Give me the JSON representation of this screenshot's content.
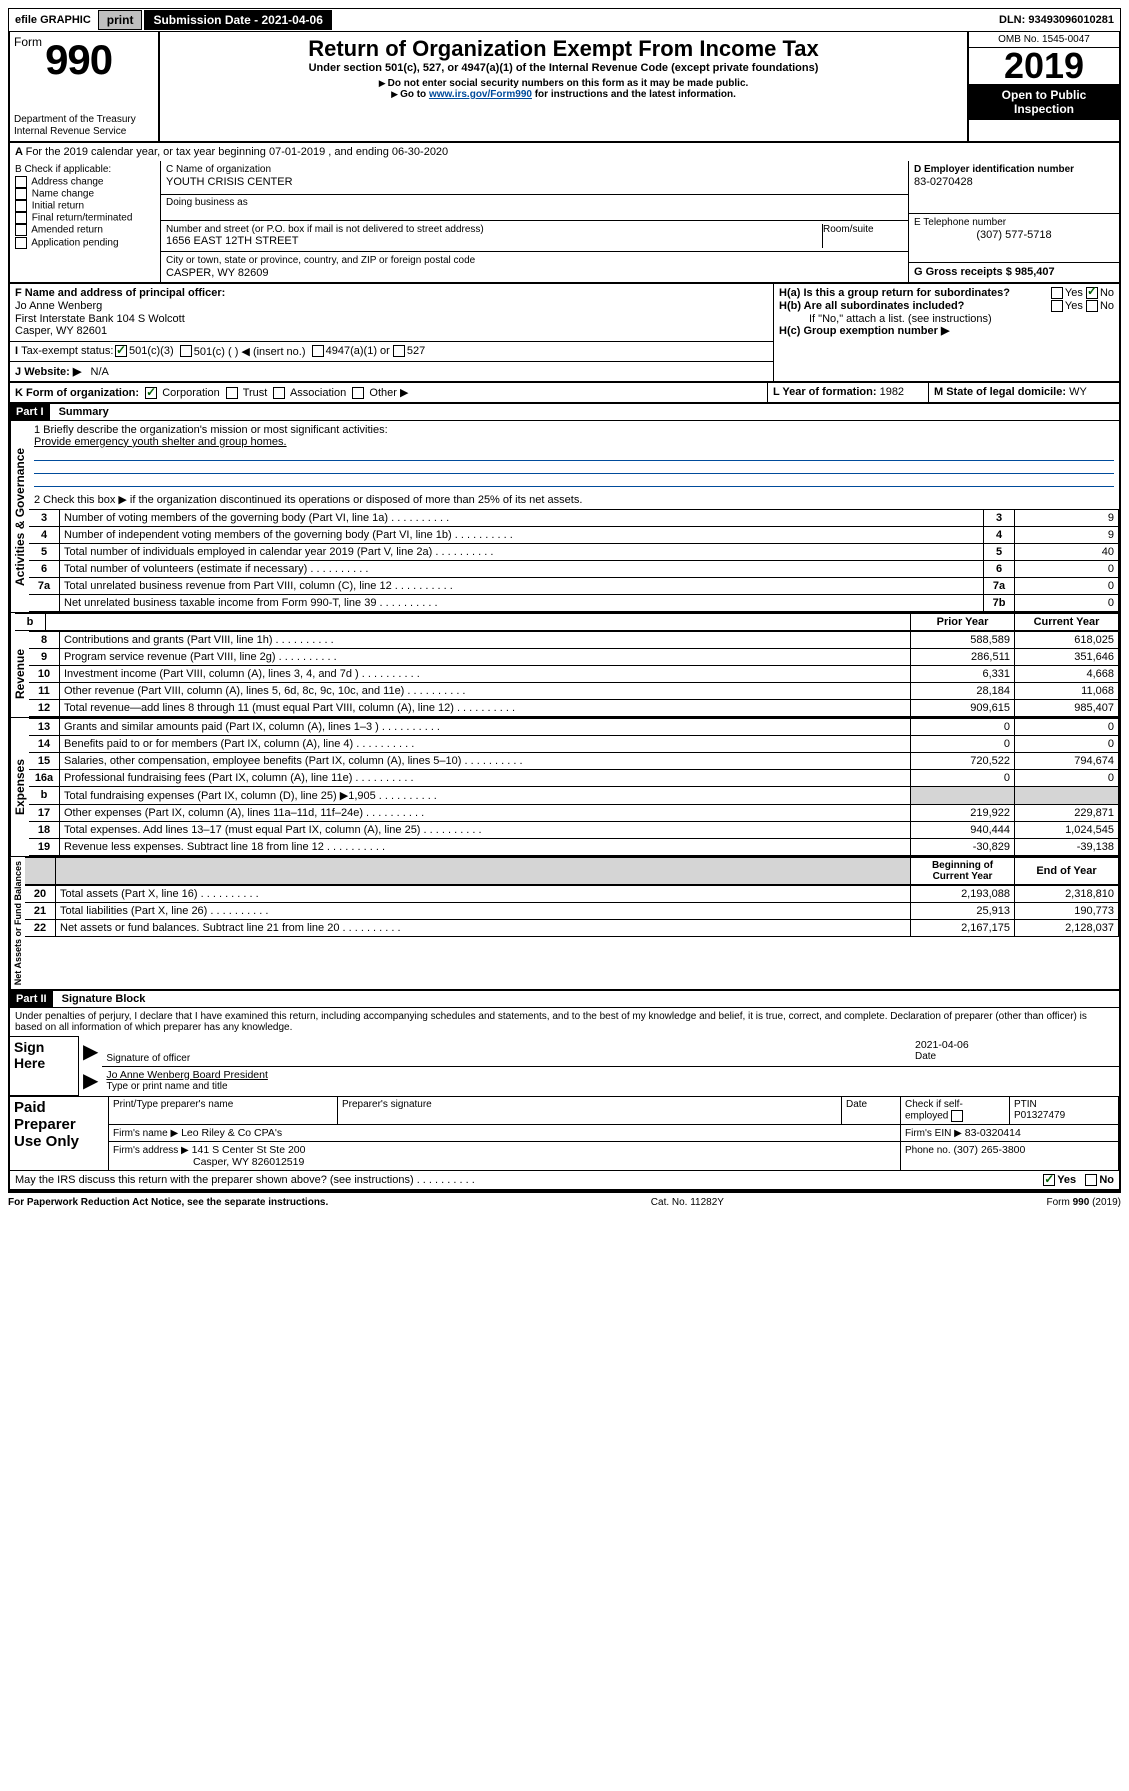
{
  "topbar": {
    "efile_label": "efile GRAPHIC",
    "print_btn": "print",
    "sub_date_label": "Submission Date - 2021-04-06",
    "dln_label": "DLN: 93493096010281"
  },
  "header": {
    "form_word": "Form",
    "form_num": "990",
    "dept1": "Department of the Treasury",
    "dept2": "Internal Revenue Service",
    "title": "Return of Organization Exempt From Income Tax",
    "subtitle": "Under section 501(c), 527, or 4947(a)(1) of the Internal Revenue Code (except private foundations)",
    "note1": "Do not enter social security numbers on this form as it may be made public.",
    "note2_a": "Go to ",
    "note2_link": "www.irs.gov/Form990",
    "note2_b": " for instructions and the latest information.",
    "omb": "OMB No. 1545-0047",
    "year": "2019",
    "inspect": "Open to Public Inspection"
  },
  "line_a": "For the 2019 calendar year, or tax year beginning 07-01-2019   , and ending 06-30-2020",
  "box_b": {
    "title": "B Check if applicable:",
    "opts": [
      "Address change",
      "Name change",
      "Initial return",
      "Final return/terminated",
      "Amended return",
      "Application pending"
    ]
  },
  "box_c": {
    "label": "C Name of organization",
    "name": "YOUTH CRISIS CENTER",
    "dba_label": "Doing business as",
    "addr_label": "Number and street (or P.O. box if mail is not delivered to street address)",
    "room_label": "Room/suite",
    "addr": "1656 EAST 12TH STREET",
    "city_label": "City or town, state or province, country, and ZIP or foreign postal code",
    "city": "CASPER, WY  82609"
  },
  "box_d": {
    "label": "D Employer identification number",
    "val": "83-0270428"
  },
  "box_e": {
    "label": "E Telephone number",
    "val": "(307) 577-5718"
  },
  "box_g": {
    "label": "G Gross receipts $",
    "val": "985,407"
  },
  "box_f": {
    "label": "F  Name and address of principal officer:",
    "l1": "Jo Anne Wenberg",
    "l2": "First Interstate Bank 104 S Wolcott",
    "l3": "Casper, WY  82601"
  },
  "box_h": {
    "ha": "H(a)  Is this a group return for subordinates?",
    "hb": "H(b)  Are all subordinates included?",
    "hnote": "If \"No,\" attach a list. (see instructions)",
    "hc": "H(c)  Group exemption number ▶",
    "yes": "Yes",
    "no": "No"
  },
  "box_i": {
    "label": "Tax-exempt status:",
    "o1": "501(c)(3)",
    "o2": "501(c) (  ) ◀ (insert no.)",
    "o3": "4947(a)(1) or",
    "o4": "527"
  },
  "box_j": {
    "label": "Website: ▶",
    "val": "N/A"
  },
  "box_k": {
    "label": "K Form of organization:",
    "o1": "Corporation",
    "o2": "Trust",
    "o3": "Association",
    "o4": "Other ▶"
  },
  "box_l": {
    "label": "L Year of formation:",
    "val": "1982"
  },
  "box_m": {
    "label": "M State of legal domicile:",
    "val": "WY"
  },
  "part1": {
    "hdr": "Part I",
    "title": "Summary",
    "l1_label": "1  Briefly describe the organization's mission or most significant activities:",
    "l1_text": "Provide emergency youth shelter and group homes.",
    "l2": "2    Check this box ▶        if the organization discontinued its operations or disposed of more than 25% of its net assets.",
    "rows": [
      {
        "n": "3",
        "t": "Number of voting members of the governing body (Part VI, line 1a)",
        "box": "3",
        "v": "9"
      },
      {
        "n": "4",
        "t": "Number of independent voting members of the governing body (Part VI, line 1b)",
        "box": "4",
        "v": "9"
      },
      {
        "n": "5",
        "t": "Total number of individuals employed in calendar year 2019 (Part V, line 2a)",
        "box": "5",
        "v": "40"
      },
      {
        "n": "6",
        "t": "Total number of volunteers (estimate if necessary)",
        "box": "6",
        "v": "0"
      },
      {
        "n": "7a",
        "t": "Total unrelated business revenue from Part VIII, column (C), line 12",
        "box": "7a",
        "v": "0"
      },
      {
        "n": "",
        "t": "Net unrelated business taxable income from Form 990-T, line 39",
        "box": "7b",
        "v": "0"
      }
    ],
    "colhdr_prior": "Prior Year",
    "colhdr_curr": "Current Year",
    "revenue": [
      {
        "n": "8",
        "t": "Contributions and grants (Part VIII, line 1h)",
        "p": "588,589",
        "c": "618,025"
      },
      {
        "n": "9",
        "t": "Program service revenue (Part VIII, line 2g)",
        "p": "286,511",
        "c": "351,646"
      },
      {
        "n": "10",
        "t": "Investment income (Part VIII, column (A), lines 3, 4, and 7d )",
        "p": "6,331",
        "c": "4,668"
      },
      {
        "n": "11",
        "t": "Other revenue (Part VIII, column (A), lines 5, 6d, 8c, 9c, 10c, and 11e)",
        "p": "28,184",
        "c": "11,068"
      },
      {
        "n": "12",
        "t": "Total revenue—add lines 8 through 11 (must equal Part VIII, column (A), line 12)",
        "p": "909,615",
        "c": "985,407"
      }
    ],
    "expenses": [
      {
        "n": "13",
        "t": "Grants and similar amounts paid (Part IX, column (A), lines 1–3 )",
        "p": "0",
        "c": "0"
      },
      {
        "n": "14",
        "t": "Benefits paid to or for members (Part IX, column (A), line 4)",
        "p": "0",
        "c": "0"
      },
      {
        "n": "15",
        "t": "Salaries, other compensation, employee benefits (Part IX, column (A), lines 5–10)",
        "p": "720,522",
        "c": "794,674"
      },
      {
        "n": "16a",
        "t": "Professional fundraising fees (Part IX, column (A), line 11e)",
        "p": "0",
        "c": "0"
      },
      {
        "n": "b",
        "t": "Total fundraising expenses (Part IX, column (D), line 25) ▶1,905",
        "p": "",
        "c": "",
        "shade": true
      },
      {
        "n": "17",
        "t": "Other expenses (Part IX, column (A), lines 11a–11d, 11f–24e)",
        "p": "219,922",
        "c": "229,871"
      },
      {
        "n": "18",
        "t": "Total expenses. Add lines 13–17 (must equal Part IX, column (A), line 25)",
        "p": "940,444",
        "c": "1,024,545"
      },
      {
        "n": "19",
        "t": "Revenue less expenses. Subtract line 18 from line 12",
        "p": "-30,829",
        "c": "-39,138"
      }
    ],
    "colhdr_beg": "Beginning of Current Year",
    "colhdr_end": "End of Year",
    "netassets": [
      {
        "n": "20",
        "t": "Total assets (Part X, line 16)",
        "p": "2,193,088",
        "c": "2,318,810"
      },
      {
        "n": "21",
        "t": "Total liabilities (Part X, line 26)",
        "p": "25,913",
        "c": "190,773"
      },
      {
        "n": "22",
        "t": "Net assets or fund balances. Subtract line 21 from line 20",
        "p": "2,167,175",
        "c": "2,128,037"
      }
    ],
    "side_gov": "Activities & Governance",
    "side_rev": "Revenue",
    "side_exp": "Expenses",
    "side_net": "Net Assets or Fund Balances"
  },
  "part2": {
    "hdr": "Part II",
    "title": "Signature Block",
    "decl": "Under penalties of perjury, I declare that I have examined this return, including accompanying schedules and statements, and to the best of my knowledge and belief, it is true, correct, and complete. Declaration of preparer (other than officer) is based on all information of which preparer has any knowledge.",
    "sign_here": "Sign Here",
    "sig_officer": "Signature of officer",
    "date_val": "2021-04-06",
    "date_lbl": "Date",
    "name_title": "Jo Anne Wenberg  Board President",
    "name_lbl": "Type or print name and title",
    "paid": "Paid Preparer Use Only",
    "pp_name_lbl": "Print/Type preparer's name",
    "pp_sig_lbl": "Preparer's signature",
    "pp_date_lbl": "Date",
    "pp_check_lbl": "Check          if self-employed",
    "ptin_lbl": "PTIN",
    "ptin": "P01327479",
    "firm_name_lbl": "Firm's name    ▶",
    "firm_name": "Leo Riley & Co CPA's",
    "firm_ein_lbl": "Firm's EIN ▶",
    "firm_ein": "83-0320414",
    "firm_addr_lbl": "Firm's address ▶",
    "firm_addr1": "141 S Center St Ste 200",
    "firm_addr2": "Casper, WY  826012519",
    "phone_lbl": "Phone no.",
    "phone": "(307) 265-3800",
    "discuss": "May the IRS discuss this return with the preparer shown above? (see instructions)",
    "yes": "Yes",
    "no": "No"
  },
  "footer": {
    "pra": "For Paperwork Reduction Act Notice, see the separate instructions.",
    "cat": "Cat. No. 11282Y",
    "form": "Form 990 (2019)"
  }
}
